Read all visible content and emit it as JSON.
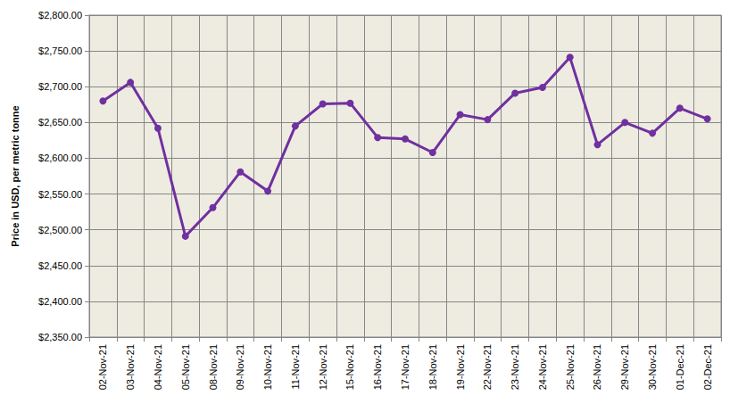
{
  "chart_data": {
    "type": "line",
    "ylabel": "Price in USD, per metric tonne",
    "categories": [
      "02-Nov-21",
      "03-Nov-21",
      "04-Nov-21",
      "05-Nov-21",
      "08-Nov-21",
      "09-Nov-21",
      "10-Nov-21",
      "11-Nov-21",
      "12-Nov-21",
      "15-Nov-21",
      "16-Nov-21",
      "17-Nov-21",
      "18-Nov-21",
      "19-Nov-21",
      "22-Nov-21",
      "23-Nov-21",
      "24-Nov-21",
      "25-Nov-21",
      "26-Nov-21",
      "29-Nov-21",
      "30-Nov-21",
      "01-Dec-21",
      "02-Dec-21"
    ],
    "values": [
      2680,
      2706,
      2642,
      2491,
      2531,
      2581,
      2554,
      2645,
      2676,
      2677,
      2629,
      2627,
      2608,
      2661,
      2654,
      2691,
      2699,
      2741,
      2619,
      2650,
      2635,
      2670,
      2655
    ],
    "color": "#7030a0",
    "marker": "circle",
    "ylim": [
      2350,
      2800
    ],
    "yticks": [
      {
        "value": 2350,
        "label": "$2,350.00"
      },
      {
        "value": 2400,
        "label": "$2,400.00"
      },
      {
        "value": 2450,
        "label": "$2,450.00"
      },
      {
        "value": 2500,
        "label": "$2,500.00"
      },
      {
        "value": 2550,
        "label": "$2,550.00"
      },
      {
        "value": 2600,
        "label": "$2,600.00"
      },
      {
        "value": 2650,
        "label": "$2,650.00"
      },
      {
        "value": 2700,
        "label": "$2,700.00"
      },
      {
        "value": 2750,
        "label": "$2,750.00"
      },
      {
        "value": 2800,
        "label": "$2,800.00"
      }
    ],
    "grid": true
  }
}
